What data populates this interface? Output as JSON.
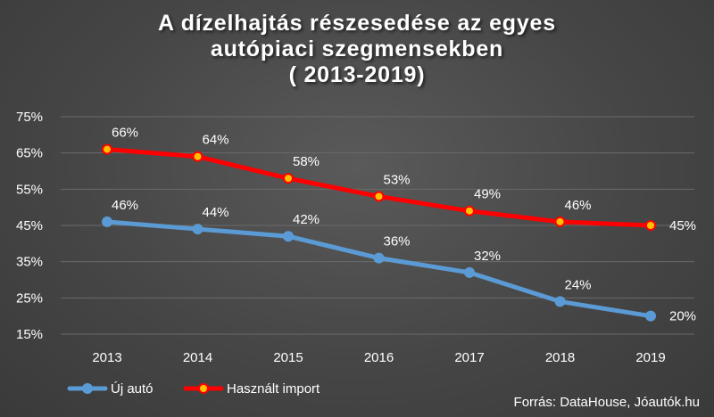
{
  "chart_data": {
    "type": "line",
    "title_lines": [
      "A dízelhajtás részesedése az egyes",
      "autópiaci szegmensekben",
      "( 2013-2019)"
    ],
    "categories": [
      "2013",
      "2014",
      "2015",
      "2016",
      "2017",
      "2018",
      "2019"
    ],
    "ylim": [
      15,
      75
    ],
    "yticks": [
      15,
      25,
      35,
      45,
      55,
      65,
      75
    ],
    "ytick_labels": [
      "15%",
      "25%",
      "35%",
      "45%",
      "55%",
      "65%",
      "75%"
    ],
    "unit": "%",
    "series": [
      {
        "name": "Új autó",
        "values": [
          46,
          44,
          42,
          36,
          32,
          24,
          20
        ],
        "labels": [
          "46%",
          "44%",
          "42%",
          "36%",
          "32%",
          "24%",
          "20%"
        ],
        "color": "#5b9bd5",
        "marker_color": "#5b9bd5"
      },
      {
        "name": "Használt import",
        "values": [
          66,
          64,
          58,
          53,
          49,
          46,
          45
        ],
        "labels": [
          "66%",
          "64%",
          "58%",
          "53%",
          "49%",
          "46%",
          "45%"
        ],
        "color": "#ff0000",
        "marker_color": "#ffc000"
      }
    ],
    "grid": true,
    "legend_position": "bottom-left",
    "source": "Forrás: DataHouse, Jóautók.hu"
  },
  "colors": {
    "background": "#464646",
    "text": "#ffffff",
    "grid": "#6a6a6a"
  }
}
